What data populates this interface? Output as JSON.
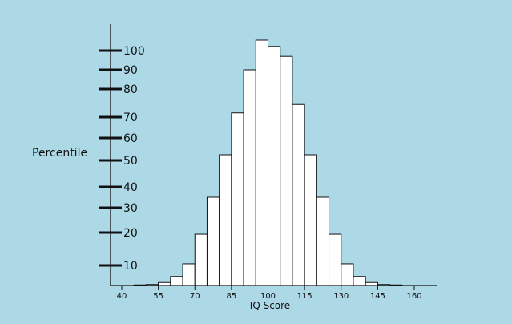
{
  "chart_data": {
    "type": "bar",
    "title": "",
    "xlabel": "IQ Score",
    "ylabel": "Percentile",
    "y_ticks": [
      10,
      20,
      30,
      40,
      50,
      60,
      70,
      80,
      90,
      100
    ],
    "x_ticks": [
      40,
      55,
      70,
      85,
      100,
      115,
      130,
      145,
      160
    ],
    "xlim": [
      37,
      165
    ],
    "ylim": [
      0,
      100
    ],
    "grid": false,
    "bins": [
      {
        "x0": 45,
        "x1": 50,
        "value": 0.3
      },
      {
        "x0": 50,
        "x1": 55,
        "value": 0.5
      },
      {
        "x0": 55,
        "x1": 60,
        "value": 1.5
      },
      {
        "x0": 60,
        "x1": 65,
        "value": 4.5
      },
      {
        "x0": 65,
        "x1": 70,
        "value": 10.5
      },
      {
        "x0": 70,
        "x1": 75,
        "value": 19.5
      },
      {
        "x0": 75,
        "x1": 80,
        "value": 35
      },
      {
        "x0": 80,
        "x1": 85,
        "value": 52.5
      },
      {
        "x0": 85,
        "x1": 90,
        "value": 71.5
      },
      {
        "x0": 90,
        "x1": 95,
        "value": 90
      },
      {
        "x0": 95,
        "x1": 100,
        "value": 105
      },
      {
        "x0": 100,
        "x1": 105,
        "value": 102
      },
      {
        "x0": 105,
        "x1": 110,
        "value": 97
      },
      {
        "x0": 110,
        "x1": 115,
        "value": 74.5
      },
      {
        "x0": 115,
        "x1": 120,
        "value": 52.5
      },
      {
        "x0": 120,
        "x1": 125,
        "value": 35
      },
      {
        "x0": 125,
        "x1": 130,
        "value": 19.5
      },
      {
        "x0": 130,
        "x1": 135,
        "value": 10.5
      },
      {
        "x0": 135,
        "x1": 140,
        "value": 4.5
      },
      {
        "x0": 140,
        "x1": 145,
        "value": 1.5
      },
      {
        "x0": 145,
        "x1": 150,
        "value": 0.5
      },
      {
        "x0": 150,
        "x1": 155,
        "value": 0.3
      }
    ]
  },
  "colors": {
    "background": "#ADD8E6",
    "bar_fill": "#FFFFFF",
    "bar_stroke": "#111111",
    "axis": "#111111",
    "text": "#111111"
  }
}
